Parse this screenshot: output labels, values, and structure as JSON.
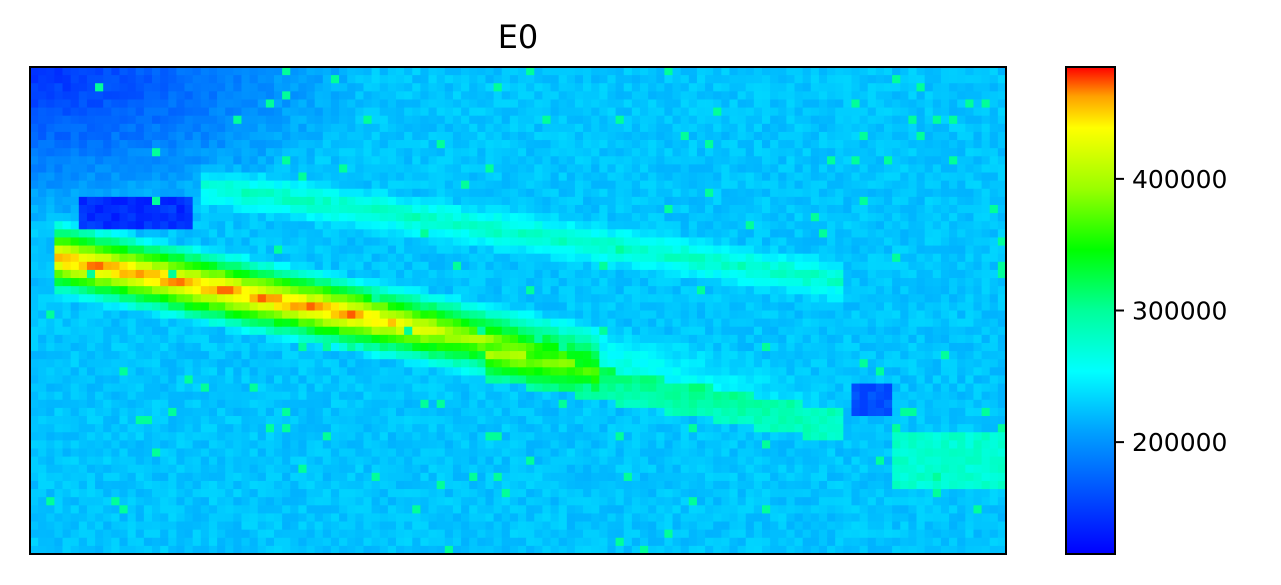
{
  "chart_data": {
    "type": "heatmap",
    "title": "E0",
    "xlabel": "",
    "ylabel": "",
    "x_ticks_shown": false,
    "y_ticks_shown": false,
    "grid": false,
    "colormap": "jet-like (blue → cyan → green → yellow → red)",
    "colorbar": {
      "placement": "right",
      "range": [
        115000,
        485000
      ],
      "ticks": [
        200000,
        300000,
        400000
      ],
      "tick_labels": [
        "200000",
        "300000",
        "400000"
      ],
      "colors": [
        "#0000ff",
        "#00a0ff",
        "#00ffff",
        "#00ff9a",
        "#00ff00",
        "#9aff00",
        "#ffff00",
        "#ffa000",
        "#ff0000"
      ]
    },
    "grid_shape": {
      "cols": 120,
      "rows": 60
    },
    "field_description": {
      "background_level": 225000,
      "high_band": {
        "from_col_row": [
          18,
          26
        ],
        "to_col_row": [
          70,
          36
        ],
        "peak_value": 470000
      },
      "secondary_band_level": 300000,
      "low_region_top_left": 150000,
      "low_patch_value": 135000
    }
  }
}
